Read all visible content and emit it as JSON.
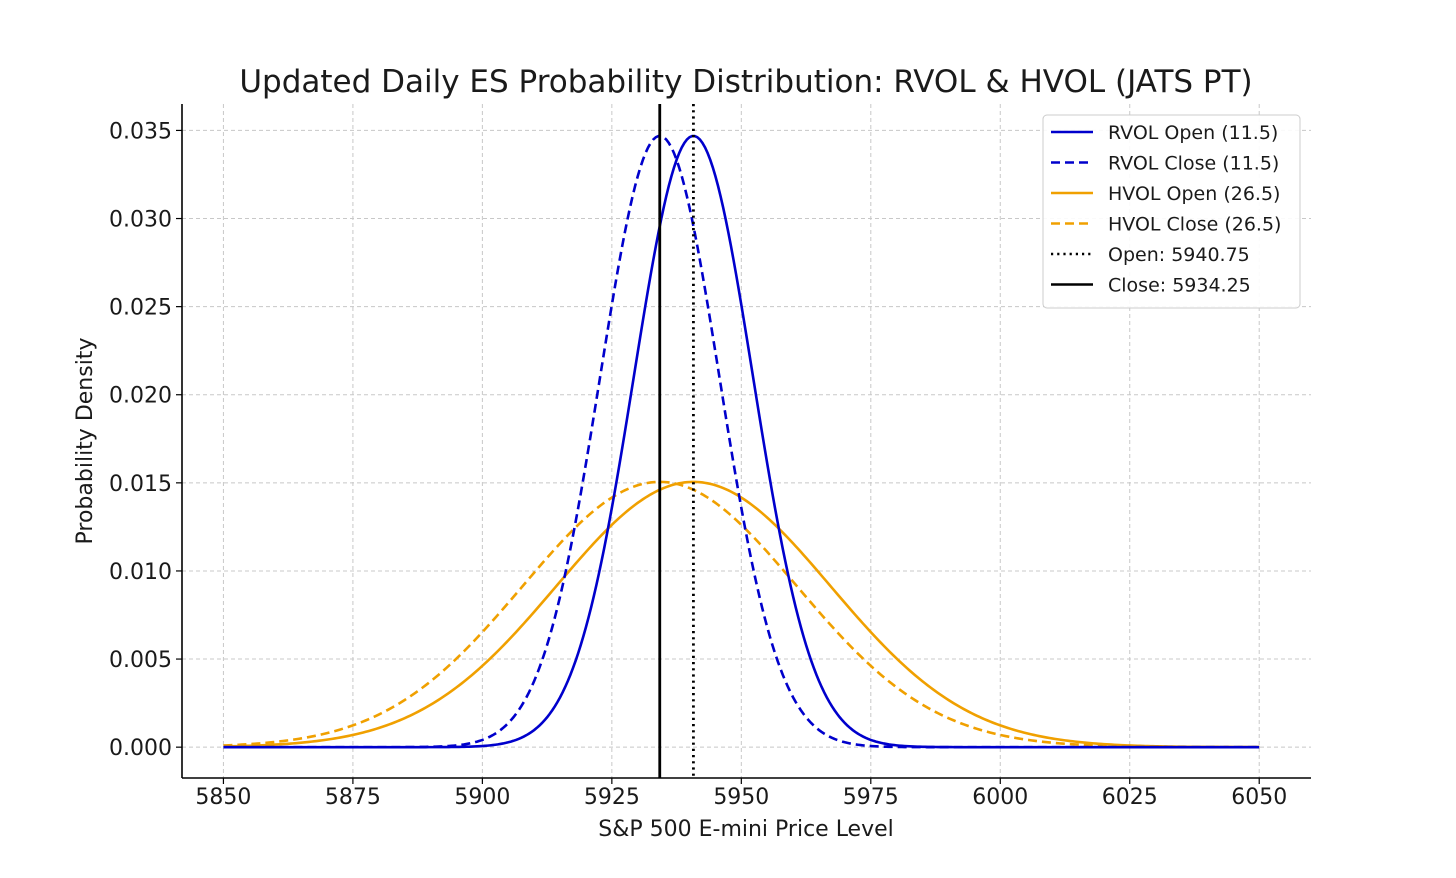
{
  "chart_data": {
    "type": "line",
    "title": "Updated Daily ES Probability Distribution: RVOL & HVOL (JATS PT)",
    "xlabel": "S&P 500 E-mini Price Level",
    "ylabel": "Probability Density",
    "xlim": [
      5842,
      6060
    ],
    "ylim": [
      -0.00175,
      0.0365
    ],
    "xticks": [
      5850,
      5875,
      5900,
      5925,
      5950,
      5975,
      6000,
      6025,
      6050
    ],
    "xtick_labels": [
      "5850",
      "5875",
      "5900",
      "5925",
      "5950",
      "5975",
      "6000",
      "6025",
      "6050"
    ],
    "yticks": [
      0.0,
      0.005,
      0.01,
      0.015,
      0.02,
      0.025,
      0.03,
      0.035
    ],
    "ytick_labels": [
      "0.000",
      "0.005",
      "0.010",
      "0.015",
      "0.020",
      "0.025",
      "0.030",
      "0.035"
    ],
    "grid": true,
    "legend_position": "top-right",
    "x_range": [
      5850,
      6050
    ],
    "series": [
      {
        "name": "RVOL Open (11.5)",
        "kind": "normal",
        "mean": 5940.75,
        "sd": 11.5,
        "color": "#0000cc",
        "style": "solid"
      },
      {
        "name": "RVOL Close (11.5)",
        "kind": "normal",
        "mean": 5934.25,
        "sd": 11.5,
        "color": "#0000cc",
        "style": "dashed"
      },
      {
        "name": "HVOL Open (26.5)",
        "kind": "normal",
        "mean": 5940.75,
        "sd": 26.5,
        "color": "#f0a000",
        "style": "solid"
      },
      {
        "name": "HVOL Close (26.5)",
        "kind": "normal",
        "mean": 5934.25,
        "sd": 26.5,
        "color": "#f0a000",
        "style": "dashed"
      },
      {
        "name": "Open: 5940.75",
        "kind": "vline",
        "x": 5940.75,
        "color": "#000000",
        "style": "dotted"
      },
      {
        "name": "Close: 5934.25",
        "kind": "vline",
        "x": 5934.25,
        "color": "#000000",
        "style": "solid"
      }
    ]
  }
}
